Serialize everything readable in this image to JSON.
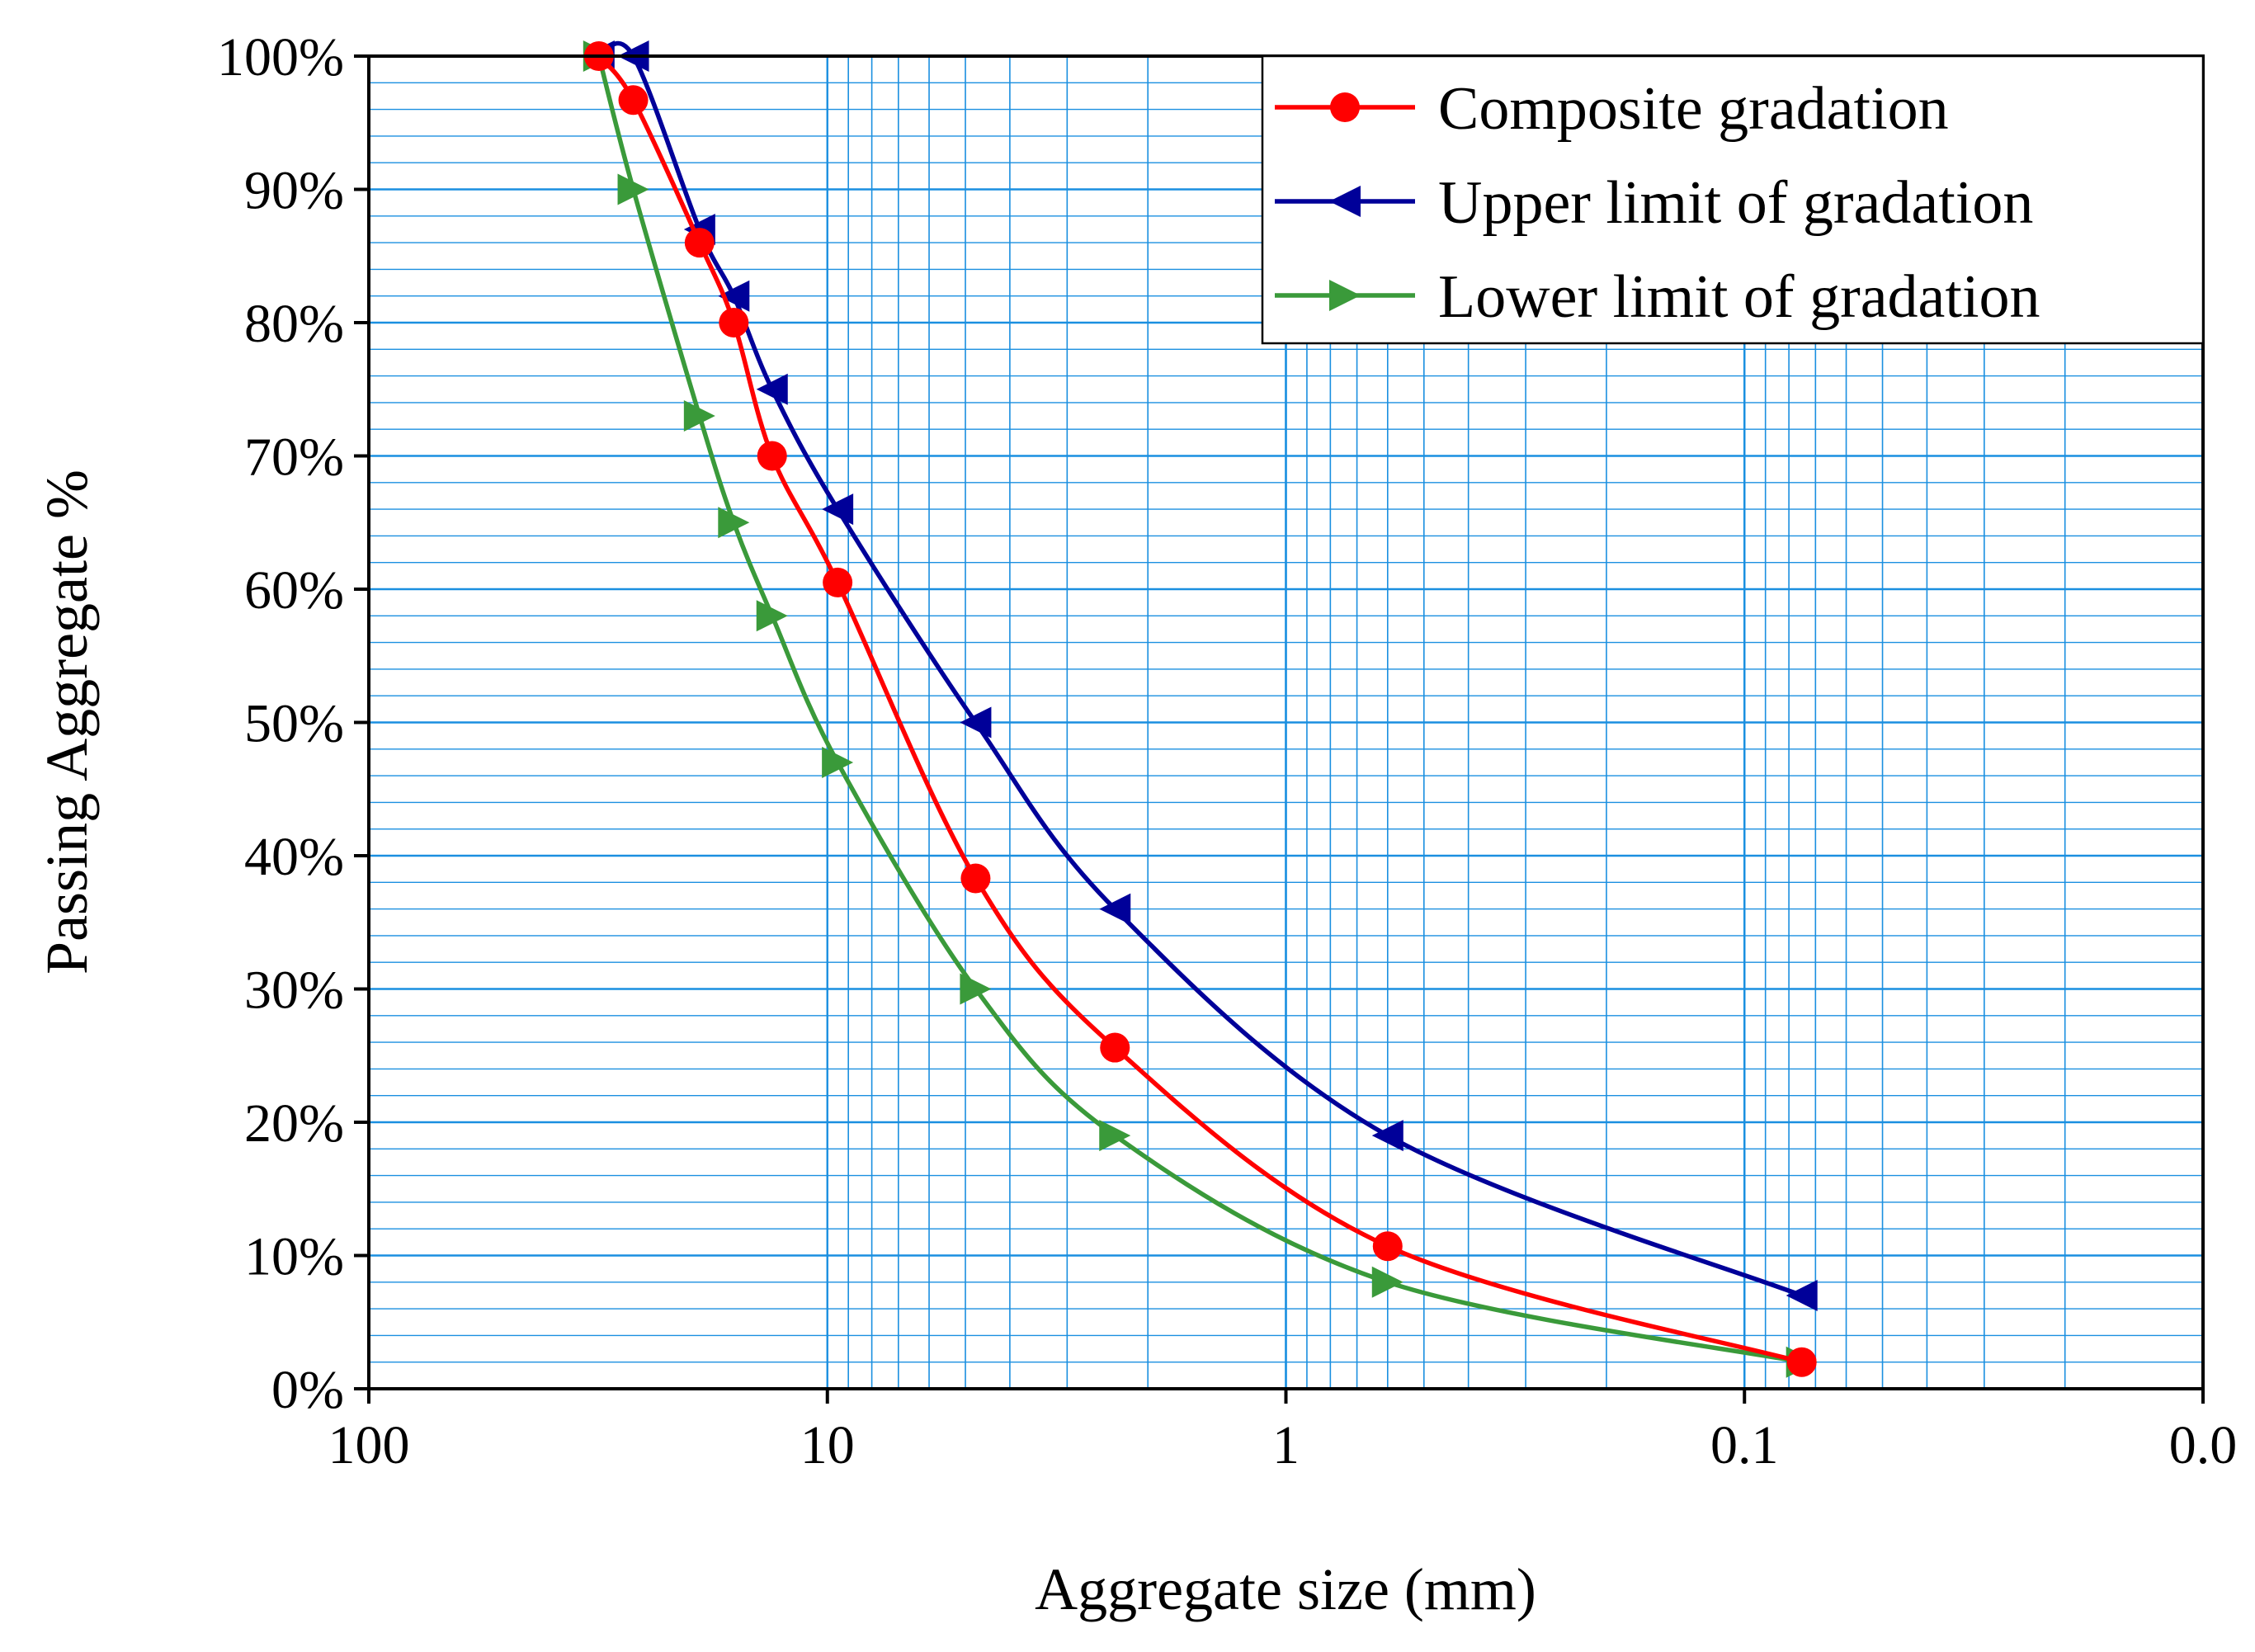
{
  "chart_data": {
    "type": "line",
    "xscale": "log",
    "x_reversed": true,
    "xlim": [
      100,
      0.01
    ],
    "ylim": [
      0,
      100
    ],
    "xlabel": "Aggregate size (mm)",
    "ylabel": "Passing Aggregate %",
    "x_ticks": [
      {
        "value": 100,
        "label": "100"
      },
      {
        "value": 10,
        "label": "10"
      },
      {
        "value": 1,
        "label": "1"
      },
      {
        "value": 0.1,
        "label": "0.1"
      },
      {
        "value": 0.01,
        "label": "0.0"
      }
    ],
    "y_ticks": [
      {
        "value": 0,
        "label": "0%"
      },
      {
        "value": 10,
        "label": "10%"
      },
      {
        "value": 20,
        "label": "20%"
      },
      {
        "value": 30,
        "label": "30%"
      },
      {
        "value": 40,
        "label": "40%"
      },
      {
        "value": 50,
        "label": "50%"
      },
      {
        "value": 60,
        "label": "60%"
      },
      {
        "value": 70,
        "label": "70%"
      },
      {
        "value": 80,
        "label": "80%"
      },
      {
        "value": 90,
        "label": "90%"
      },
      {
        "value": 100,
        "label": "100%"
      }
    ],
    "grid": true,
    "grid_color": "#1a8fe0",
    "legend_position": "top-right",
    "series": [
      {
        "name": "Composite gradation",
        "color": "#ff0000",
        "marker": "circle",
        "x": [
          31.5,
          26.5,
          19,
          16,
          13.2,
          9.5,
          4.75,
          2.36,
          0.6,
          0.075
        ],
        "y": [
          100,
          96.7,
          86,
          80,
          70,
          60.5,
          38.3,
          25.6,
          10.7,
          2
        ]
      },
      {
        "name": "Upper limit of gradation",
        "color": "#000099",
        "marker": "triangle-left",
        "x": [
          31.5,
          26.5,
          19,
          16,
          13.2,
          9.5,
          4.75,
          2.36,
          0.6,
          0.075
        ],
        "y": [
          100,
          100,
          87,
          82,
          75,
          66,
          50,
          36,
          19,
          7
        ]
      },
      {
        "name": "Lower limit of gradation",
        "color": "#3a9a3a",
        "marker": "triangle-right",
        "x": [
          31.5,
          26.5,
          19,
          16,
          13.2,
          9.5,
          4.75,
          2.36,
          0.6,
          0.075
        ],
        "y": [
          100,
          90,
          73,
          65,
          58,
          47,
          30,
          19,
          8,
          2
        ]
      }
    ]
  }
}
